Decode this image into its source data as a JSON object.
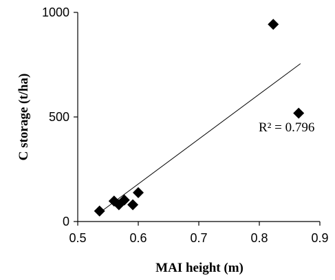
{
  "chart_data": {
    "type": "scatter",
    "xlabel": "MAI height (m)",
    "ylabel": "C storage (t/ha)",
    "xlim": [
      0.5,
      0.9
    ],
    "ylim": [
      0,
      1000
    ],
    "xticks": [
      "0.5",
      "0.6",
      "0.7",
      "0.8",
      "0.9"
    ],
    "yticks": [
      "0",
      "500",
      "1000"
    ],
    "points": [
      {
        "x": 0.536,
        "y": 50
      },
      {
        "x": 0.56,
        "y": 98
      },
      {
        "x": 0.568,
        "y": 80
      },
      {
        "x": 0.577,
        "y": 103
      },
      {
        "x": 0.591,
        "y": 80
      },
      {
        "x": 0.6,
        "y": 138
      },
      {
        "x": 0.823,
        "y": 943
      },
      {
        "x": 0.865,
        "y": 518
      }
    ],
    "trendline": {
      "x": [
        0.536,
        0.868
      ],
      "y": [
        42,
        755
      ]
    },
    "r2_label": "R² = 0.796",
    "marker": "diamond",
    "marker_color": "#000000",
    "grid": false
  }
}
